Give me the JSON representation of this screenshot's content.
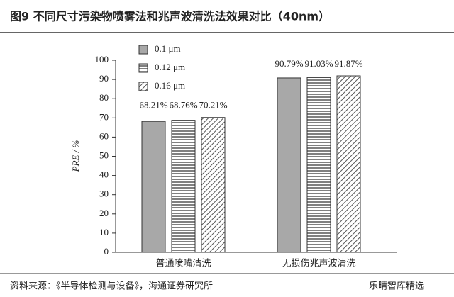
{
  "chart_data": {
    "type": "bar",
    "title": "图9  不同尺寸污染物喷雾法和兆声波清洗法效果对比（40nm）",
    "y_label": "PRE / %",
    "source": "资料来源：《半导体检测与设备》，海通证券研究所",
    "watermark": "乐晴智库精选",
    "categories": [
      "普通喷嘴清洗",
      "无损伤兆声波清洗"
    ],
    "series": [
      {
        "name": "0.1 μm",
        "color": "#a8a8a8",
        "pattern": "solid",
        "values": [
          68.21,
          90.79
        ],
        "value_labels": [
          "68.21%",
          "90.79%"
        ]
      },
      {
        "name": "0.12 μm",
        "color": "#555555",
        "pattern": "horizontal",
        "values": [
          68.76,
          91.03
        ],
        "value_labels": [
          "68.76%",
          "91.03%"
        ]
      },
      {
        "name": "0.16 μm",
        "color": "#555555",
        "pattern": "diagonal",
        "values": [
          70.21,
          91.87
        ],
        "value_labels": [
          "70.21%",
          "91.87%"
        ]
      }
    ],
    "ylim": [
      0,
      100
    ],
    "yticks": [
      0,
      10,
      20,
      30,
      40,
      50,
      60,
      70,
      80,
      90,
      100
    ],
    "legend": "top-left"
  }
}
